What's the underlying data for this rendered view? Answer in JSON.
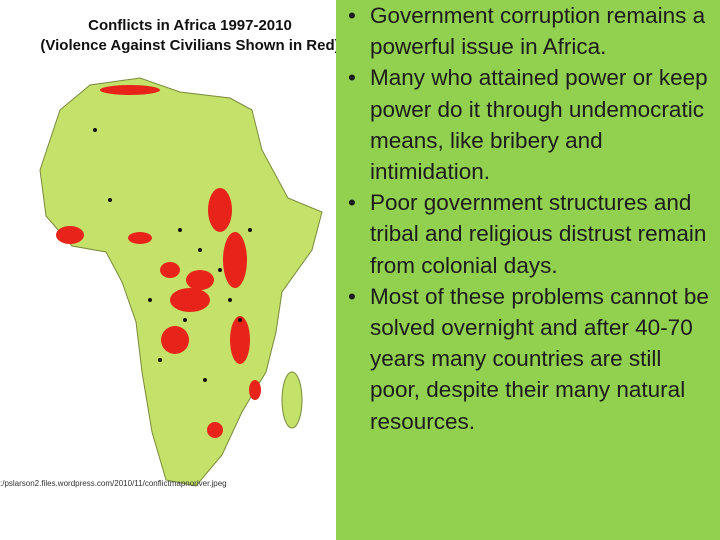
{
  "map": {
    "title": "Conflicts in Africa 1997-2010",
    "subtitle": "(Violence Against Civilians Shown in Red)",
    "source": ":/pslarson2.files.wordpress.com/2010/11/conflictmapnoriver.jpeg"
  },
  "bullets": [
    "Government corruption remains a powerful issue in Africa.",
    "Many who attained power or keep power do it through undemocratic means, like bribery and intimidation.",
    "Poor government structures and tribal and religious distrust remain from colonial days.",
    "Most of these problems cannot be solved overnight and after 40-70 years many countries are still poor, despite their many natural resources."
  ]
}
